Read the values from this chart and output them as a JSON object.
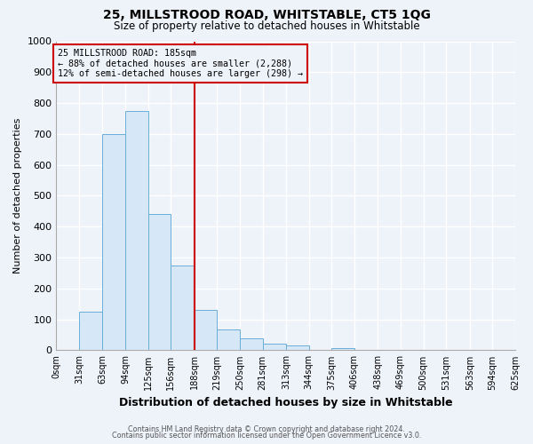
{
  "title": "25, MILLSTROOD ROAD, WHITSTABLE, CT5 1QG",
  "subtitle": "Size of property relative to detached houses in Whitstable",
  "xlabel": "Distribution of detached houses by size in Whitstable",
  "ylabel": "Number of detached properties",
  "bin_edges": [
    0,
    31,
    63,
    94,
    125,
    156,
    188,
    219,
    250,
    281,
    313,
    344,
    375,
    406,
    438,
    469,
    500,
    531,
    563,
    594,
    625
  ],
  "bin_heights": [
    0,
    126,
    700,
    775,
    440,
    275,
    130,
    68,
    40,
    20,
    15,
    0,
    8,
    0,
    0,
    0,
    0,
    0,
    0,
    0
  ],
  "bar_facecolor": "#d6e8f7",
  "bar_edgecolor": "#6aaed6",
  "vline_x": 188,
  "vline_color": "#cc0000",
  "annotation_box_color": "#cc0000",
  "annotation_lines": [
    "25 MILLSTROOD ROAD: 185sqm",
    "← 88% of detached houses are smaller (2,288)",
    "12% of semi-detached houses are larger (298) →"
  ],
  "ylim": [
    0,
    1000
  ],
  "yticks": [
    0,
    100,
    200,
    300,
    400,
    500,
    600,
    700,
    800,
    900,
    1000
  ],
  "tick_labels": [
    "0sqm",
    "31sqm",
    "63sqm",
    "94sqm",
    "125sqm",
    "156sqm",
    "188sqm",
    "219sqm",
    "250sqm",
    "281sqm",
    "313sqm",
    "344sqm",
    "375sqm",
    "406sqm",
    "438sqm",
    "469sqm",
    "500sqm",
    "531sqm",
    "563sqm",
    "594sqm",
    "625sqm"
  ],
  "footer1": "Contains HM Land Registry data © Crown copyright and database right 2024.",
  "footer2": "Contains public sector information licensed under the Open Government Licence v3.0.",
  "bg_color": "#eef2f9",
  "grid_color": "#ffffff"
}
